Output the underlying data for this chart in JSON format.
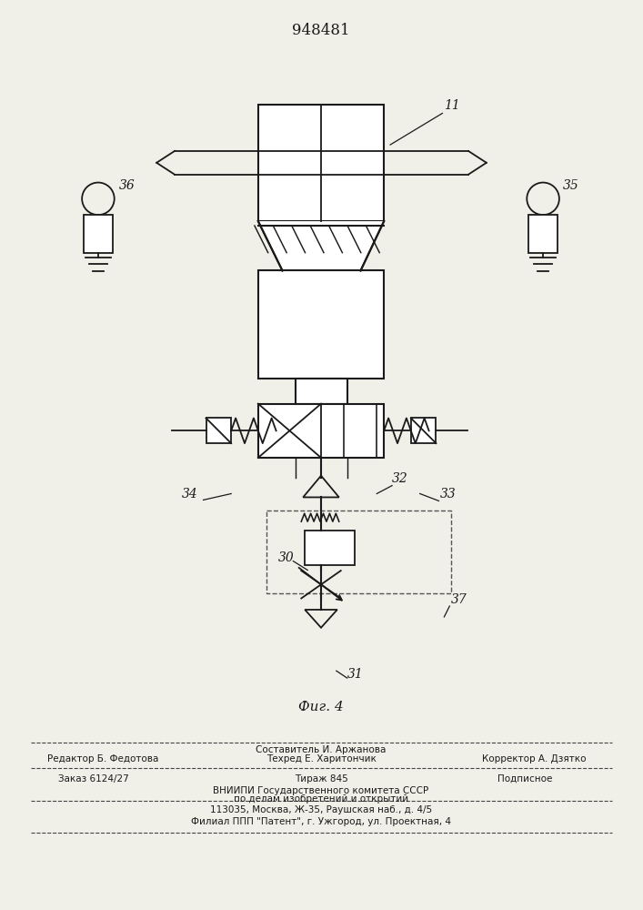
{
  "title": "948481",
  "background_color": "#f0efe8",
  "line_color": "#1a1a1a",
  "line_width": 1.5,
  "text_color": "#1a1a1a",
  "fig_label": "Фиг. 4",
  "bottom_texts": {
    "sostavitel": "Составитель И. Аржанова",
    "redaktor": "Редактор Б. Федотова",
    "tekhred": "Техред Е. Харитончик",
    "korrektor": "Корректор А. Дзятко",
    "zakaz": "Заказ 6124/27",
    "tirazh": "Тираж 845",
    "podpisnoe": "Подписное",
    "vniipи": "ВНИИПИ Государственного комитета СССР",
    "po_delam": "по делам изобретений и открытий",
    "address": "113035, Москва, Ж-35, Раушская наб., д. 4/5",
    "filial": "Филиал ППП \"Патент\", г. Ужгород, ул. Проектная, 4"
  }
}
